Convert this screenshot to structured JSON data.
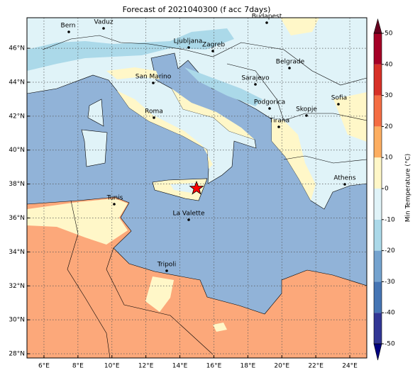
{
  "title": "Forecast of 2021040300 (f acc 7days)",
  "map": {
    "lon_range": [
      5,
      25
    ],
    "lat_range": [
      27.75,
      47.8
    ],
    "lon_ticks": [
      {
        "value": 6,
        "label": "6°E"
      },
      {
        "value": 8,
        "label": "8°E"
      },
      {
        "value": 10,
        "label": "10°E"
      },
      {
        "value": 12,
        "label": "12°E"
      },
      {
        "value": 14,
        "label": "14°E"
      },
      {
        "value": 16,
        "label": "16°E"
      },
      {
        "value": 18,
        "label": "18°E"
      },
      {
        "value": 20,
        "label": "20°E"
      },
      {
        "value": 22,
        "label": "22°E"
      },
      {
        "value": 24,
        "label": "24°E"
      }
    ],
    "lat_ticks": [
      {
        "value": 28,
        "label": "28°N"
      },
      {
        "value": 30,
        "label": "30°N"
      },
      {
        "value": 32,
        "label": "32°N"
      },
      {
        "value": 34,
        "label": "34°N"
      },
      {
        "value": 36,
        "label": "36°N"
      },
      {
        "value": 38,
        "label": "38°N"
      },
      {
        "value": 40,
        "label": "40°N"
      },
      {
        "value": 42,
        "label": "42°N"
      },
      {
        "value": 44,
        "label": "44°N"
      },
      {
        "value": 46,
        "label": "46°N"
      }
    ],
    "cities": [
      "Bern",
      "Vaduz",
      "Ljubljana",
      "Zagreb",
      "Budapest",
      "San Marino",
      "Sarajevo",
      "Belgrade",
      "Sofia",
      "Podgorica",
      "Skopje",
      "Roma",
      "Tirana",
      "Athens",
      "Tunis",
      "La Valette",
      "Tripoli"
    ]
  },
  "colorbar": {
    "label": "Min Temperature (°C)",
    "ticks": [
      -50,
      -40,
      -30,
      -20,
      -10,
      0,
      10,
      20,
      30,
      40,
      50
    ],
    "colors": [
      "#313695",
      "#4575b4",
      "#74a3cf",
      "#abd9e9",
      "#e0f3f8",
      "#fff7c8",
      "#fdae61",
      "#f46d43",
      "#d73027",
      "#a50026"
    ],
    "under_color": "#000080",
    "over_color": "#67001f"
  }
}
